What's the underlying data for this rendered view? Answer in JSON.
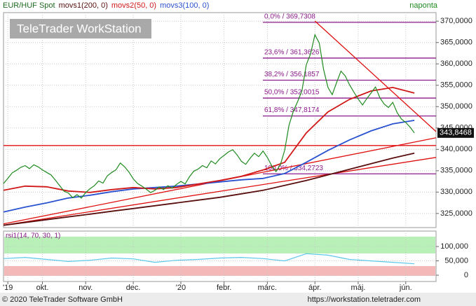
{
  "chart_data": {
    "type": "line",
    "period": "naponta",
    "watermark": "TeleTrader WorkStation",
    "copyright": "© 2020 TeleTrader Software GmbH",
    "url": "https://workstation.teletrader.com",
    "last_value": {
      "value": 343846.8,
      "label": "343,8468"
    },
    "xlim": [
      0,
      100
    ],
    "xticks": [
      {
        "value": 1,
        "label": "'19"
      },
      {
        "value": 9,
        "label": "okt."
      },
      {
        "value": 19,
        "label": "nov."
      },
      {
        "value": 30,
        "label": "dec."
      },
      {
        "value": 41,
        "label": "'20"
      },
      {
        "value": 51,
        "label": "febr."
      },
      {
        "value": 61,
        "label": "márc."
      },
      {
        "value": 72,
        "label": "ápr."
      },
      {
        "value": 82,
        "label": "máj."
      },
      {
        "value": 93,
        "label": "jún."
      }
    ],
    "ylim": [
      321700,
      372000
    ],
    "yticks": [
      {
        "value": 325000,
        "label": "325,0000"
      },
      {
        "value": 330000,
        "label": "330,0000"
      },
      {
        "value": 335000,
        "label": "335,0000"
      },
      {
        "value": 340000,
        "label": "340,0000"
      },
      {
        "value": 345000,
        "label": "345,0000"
      },
      {
        "value": 350000,
        "label": "350,0000"
      },
      {
        "value": 355000,
        "label": "355,0000"
      },
      {
        "value": 360000,
        "label": "360,0000"
      },
      {
        "value": 365000,
        "label": "365,0000"
      },
      {
        "value": 370000,
        "label": "370,0000"
      }
    ],
    "grid": true,
    "series": [
      {
        "name": "EUR/HUF Spot",
        "color": "#1f8a1f",
        "x": [
          0,
          1,
          2,
          3,
          4,
          5,
          6,
          7,
          8,
          9,
          10,
          11,
          12,
          13,
          14,
          15,
          16,
          17,
          18,
          19,
          20,
          21,
          22,
          23,
          24,
          25,
          26,
          27,
          28,
          29,
          30,
          31,
          32,
          33,
          34,
          35,
          36,
          37,
          38,
          39,
          40,
          41,
          42,
          43,
          44,
          45,
          46,
          47,
          48,
          49,
          50,
          51,
          52,
          53,
          54,
          55,
          56,
          57,
          58,
          59,
          60,
          61,
          62,
          63,
          64,
          65,
          66,
          67,
          68,
          69,
          70,
          71,
          72,
          73,
          74,
          75,
          76,
          77,
          78,
          79,
          80,
          81,
          82,
          83,
          84,
          85,
          86,
          87,
          88,
          89,
          90,
          91,
          92,
          93,
          94,
          95
        ],
        "values": [
          332000,
          333200,
          334500,
          335100,
          335800,
          336200,
          335500,
          336400,
          335900,
          335200,
          334600,
          334000,
          332800,
          331500,
          330200,
          329800,
          328700,
          329400,
          328600,
          329900,
          330800,
          331500,
          332600,
          332100,
          333800,
          334600,
          335200,
          336800,
          335900,
          334700,
          333100,
          332000,
          331400,
          330700,
          329900,
          330400,
          331200,
          330600,
          331500,
          330900,
          331800,
          332500,
          331900,
          333600,
          334900,
          335400,
          336200,
          335700,
          337300,
          336600,
          337800,
          338600,
          339400,
          339900,
          338700,
          337200,
          336500,
          337900,
          339100,
          338300,
          339600,
          338100,
          336200,
          334800,
          336400,
          339800,
          345600,
          348900,
          351200,
          353700,
          359800,
          362400,
          366800,
          364900,
          358700,
          354500,
          352800,
          355600,
          358300,
          357200,
          355100,
          353400,
          351800,
          350400,
          351900,
          353200,
          354600,
          352100,
          350600,
          349800,
          351000,
          348600,
          347100,
          346300,
          345200,
          343846.8
        ]
      },
      {
        "name": "movs1(200, 0)",
        "color": "#5a0f0f",
        "x": [
          0,
          5,
          10,
          15,
          20,
          25,
          30,
          35,
          40,
          45,
          50,
          55,
          60,
          65,
          70,
          75,
          80,
          85,
          90,
          95
        ],
        "values": [
          322240,
          322890,
          323550,
          324200,
          324850,
          325510,
          326160,
          326820,
          327470,
          328130,
          328780,
          329600,
          330420,
          331570,
          332710,
          334020,
          335330,
          336640,
          337950,
          339100
        ]
      },
      {
        "name": "movs2(50, 0)",
        "color": "#d01818",
        "x": [
          0,
          5,
          10,
          15,
          20,
          25,
          30,
          35,
          40,
          45,
          50,
          55,
          60,
          65,
          70,
          75,
          80,
          85,
          90,
          95
        ],
        "values": [
          330420,
          331400,
          331240,
          330260,
          329930,
          330580,
          331080,
          330750,
          331080,
          331890,
          332710,
          333690,
          335170,
          336970,
          343840,
          348750,
          351700,
          353670,
          354480,
          353170
        ]
      },
      {
        "name": "movs3(100, 0)",
        "color": "#2a52d0",
        "x": [
          0,
          5,
          10,
          15,
          20,
          25,
          30,
          35,
          40,
          45,
          50,
          55,
          60,
          65,
          70,
          75,
          80,
          85,
          90,
          95
        ],
        "values": [
          325350,
          326490,
          327470,
          328620,
          329270,
          330090,
          330750,
          331080,
          331400,
          331890,
          332390,
          332880,
          333200,
          334350,
          336970,
          339750,
          342210,
          344330,
          345970,
          346790
        ]
      }
    ],
    "levels": [
      {
        "value": 369730.8,
        "label": "0,0% / 369,7308"
      },
      {
        "value": 361362.6,
        "label": "23,6% / 361,3626"
      },
      {
        "value": 356185.7,
        "label": "38,2% / 356,1857"
      },
      {
        "value": 352001.5,
        "label": "50,0% / 352,0015"
      },
      {
        "value": 347817.4,
        "label": "61,8% / 347,8174"
      },
      {
        "value": 334272.3,
        "label": "100,0% / 334,2723"
      }
    ],
    "level_color": "#8b1a8b",
    "trendline_color": "#e01010",
    "trendlines": [
      {
        "x": [
          0,
          100
        ],
        "values": [
          340900,
          340900
        ]
      },
      {
        "x": [
          0,
          100
        ],
        "values": [
          322560,
          342700
        ]
      },
      {
        "x": [
          0,
          100
        ],
        "values": [
          322240,
          338110
        ]
      },
      {
        "x": [
          72,
          100
        ],
        "values": [
          370040,
          344170
        ]
      }
    ],
    "rsi": {
      "name": "rsi1(14, 70, 30, 1)",
      "color": "#5bc8e8",
      "x": [
        0,
        5,
        10,
        15,
        20,
        25,
        30,
        35,
        40,
        45,
        50,
        55,
        60,
        65,
        70,
        75,
        80,
        85,
        90,
        95
      ],
      "values": [
        58,
        62,
        55,
        48,
        52,
        60,
        57,
        45,
        52,
        55,
        60,
        62,
        58,
        50,
        75,
        70,
        55,
        50,
        45,
        40
      ],
      "ylim": [
        -17,
        149
      ],
      "yticks": [
        0,
        {
          "value": 50,
          "label": "50,000"
        },
        {
          "value": 100,
          "label": "100,000"
        }
      ]
    }
  }
}
